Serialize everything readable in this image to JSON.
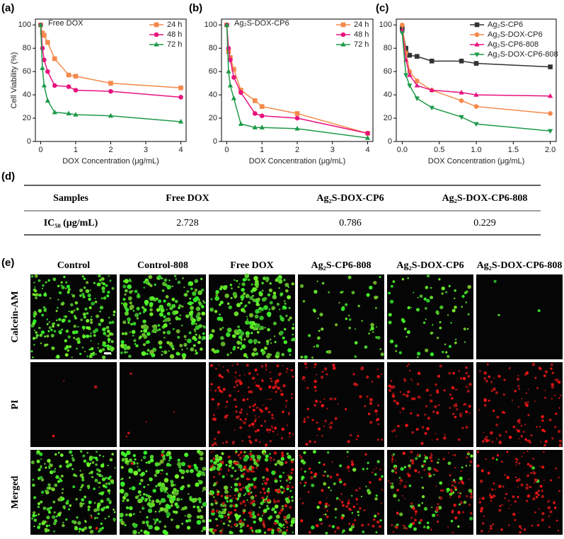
{
  "panel_labels": [
    "(a)",
    "(b)",
    "(c)",
    "(d)",
    "(e)"
  ],
  "chart_data": [
    {
      "type": "line",
      "title": "Free DOX",
      "ylabel": "Cell Viability (%)",
      "xlabel": "DOX Concentration (μg/mL)",
      "x": [
        0,
        0.05,
        0.1,
        0.2,
        0.4,
        0.8,
        1,
        2,
        4
      ],
      "xlim": [
        -0.15,
        4.15
      ],
      "xticks": [
        0,
        1,
        2,
        3,
        4
      ],
      "ylim": [
        0,
        105
      ],
      "yticks": [
        0,
        20,
        40,
        60,
        80,
        100
      ],
      "legend": "upper right",
      "series": [
        {
          "name": "24 h",
          "color": "#f4894a",
          "marker": "square",
          "values": [
            100,
            93,
            91,
            85,
            71,
            57,
            56,
            50,
            46
          ]
        },
        {
          "name": "48 h",
          "color": "#e8127e",
          "marker": "circle",
          "values": [
            100,
            80,
            70,
            60,
            48,
            47,
            44,
            43,
            38
          ]
        },
        {
          "name": "72 h",
          "color": "#1e9a4a",
          "marker": "triangle",
          "values": [
            100,
            63,
            48,
            35,
            25,
            24,
            23,
            22,
            17
          ]
        }
      ]
    },
    {
      "type": "line",
      "title": "Ag₂S-DOX-CP6",
      "xlabel": "DOX Concentration (μg/mL)",
      "x": [
        0,
        0.05,
        0.1,
        0.2,
        0.4,
        0.8,
        1,
        2,
        4
      ],
      "xlim": [
        -0.15,
        4.15
      ],
      "xticks": [
        0,
        1,
        2,
        3,
        4
      ],
      "ylim": [
        0,
        105
      ],
      "yticks": [
        0,
        20,
        40,
        60,
        80,
        100
      ],
      "legend": "upper right",
      "series": [
        {
          "name": "24 h",
          "color": "#f4894a",
          "marker": "square",
          "values": [
            100,
            77,
            72,
            62,
            44,
            35,
            30,
            24,
            7
          ]
        },
        {
          "name": "48 h",
          "color": "#e8127e",
          "marker": "circle",
          "values": [
            100,
            80,
            70,
            55,
            42,
            24,
            22,
            20,
            7
          ]
        },
        {
          "name": "72 h",
          "color": "#1e9a4a",
          "marker": "triangle",
          "values": [
            100,
            60,
            48,
            37,
            15,
            12,
            12,
            11,
            3
          ]
        }
      ]
    },
    {
      "type": "line",
      "xlabel": "DOX Concentration (μg/mL)",
      "x": [
        0,
        0.05,
        0.1,
        0.2,
        0.4,
        0.8,
        1,
        2
      ],
      "xlim": [
        -0.08,
        2.08
      ],
      "xticks": [
        {
          "value": 0,
          "label": "0.0"
        },
        {
          "value": 0.5,
          "label": "0.5"
        },
        {
          "value": 1,
          "label": "1.0"
        },
        {
          "value": 1.5,
          "label": "1.5"
        },
        {
          "value": 2,
          "label": "2.0"
        }
      ],
      "ylim": [
        0,
        105
      ],
      "yticks": [
        0,
        20,
        40,
        60,
        80,
        100
      ],
      "legend": "upper right",
      "series": [
        {
          "name": "Ag₂S-CP6",
          "color": "#333333",
          "marker": "square",
          "values": [
            97,
            80,
            74,
            73,
            69,
            69,
            67,
            64
          ]
        },
        {
          "name": "Ag₂S-DOX-CP6",
          "color": "#f4894a",
          "marker": "circle",
          "values": [
            100,
            76,
            60,
            52,
            44,
            35,
            30,
            24
          ]
        },
        {
          "name": "Ag₂S-CP6-808",
          "color": "#e8127e",
          "marker": "triangle",
          "values": [
            95,
            70,
            57,
            48,
            44,
            42,
            40,
            39
          ]
        },
        {
          "name": "Ag₂S-DOX-CP6-808",
          "color": "#1e9a4a",
          "marker": "triangle-down",
          "values": [
            93,
            57,
            48,
            37,
            29,
            21,
            15,
            9
          ]
        }
      ]
    }
  ],
  "table": {
    "header": [
      "Samples",
      "Free DOX",
      "Ag₂S-DOX-CP6",
      "Ag₂S-DOX-CP6-808"
    ],
    "rows": [
      [
        "IC₅₀ (μg/mL)",
        2.728,
        0.786,
        0.229
      ]
    ]
  },
  "images": {
    "columns": [
      "Control",
      "Control-808",
      "Free DOX",
      "Ag₂S-CP6-808",
      "Ag₂S-DOX-CP6",
      "Ag₂S-DOX-CP6-808"
    ],
    "rows": [
      "Calcein-AM",
      "PI",
      "Merged"
    ]
  }
}
